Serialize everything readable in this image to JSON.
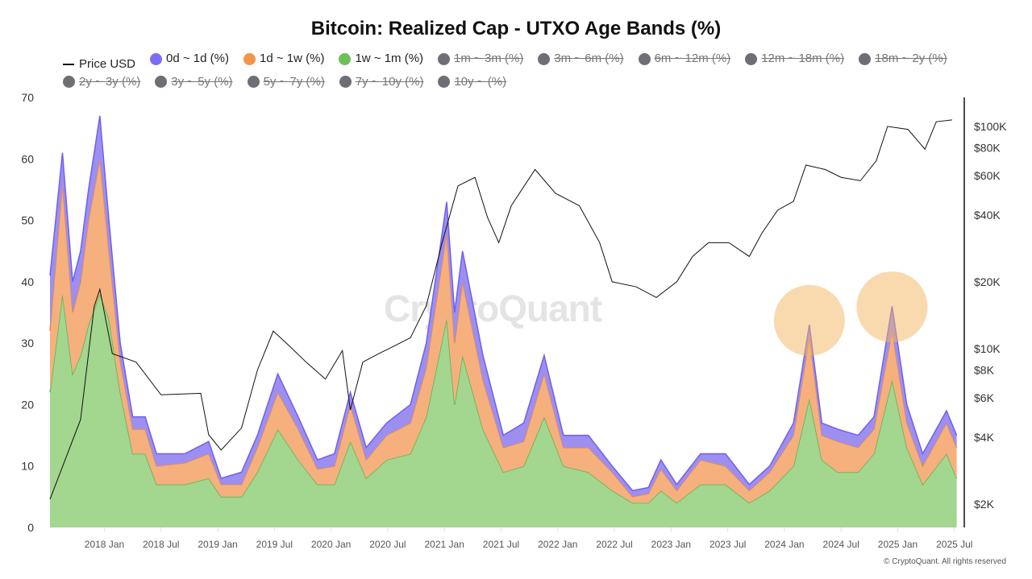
{
  "chart_data": {
    "type": "area",
    "stacked": true,
    "title": "Bitcoin: Realized Cap - UTXO Age Bands (%)",
    "ylabel": "",
    "ylim": [
      0,
      70
    ],
    "yticks": [
      0,
      10,
      20,
      30,
      40,
      50,
      60,
      70
    ],
    "y2_scale": "log",
    "y2lim": [
      1700,
      130000
    ],
    "y2ticks": [
      {
        "v": 2000,
        "l": "$2K"
      },
      {
        "v": 4000,
        "l": "$4K"
      },
      {
        "v": 6000,
        "l": "$6K"
      },
      {
        "v": 8000,
        "l": "$8K"
      },
      {
        "v": 10000,
        "l": "$10K"
      },
      {
        "v": 20000,
        "l": "$20K"
      },
      {
        "v": 40000,
        "l": "$40K"
      },
      {
        "v": 60000,
        "l": "$60K"
      },
      {
        "v": 80000,
        "l": "$80K"
      },
      {
        "v": 100000,
        "l": "$100K"
      }
    ],
    "xlim": [
      2017.52,
      2025.53
    ],
    "xticks": [
      {
        "v": 2018.0,
        "l": "2018 Jan"
      },
      {
        "v": 2018.5,
        "l": "2018 Jul"
      },
      {
        "v": 2019.0,
        "l": "2019 Jan"
      },
      {
        "v": 2019.5,
        "l": "2019 Jul"
      },
      {
        "v": 2020.0,
        "l": "2020 Jan"
      },
      {
        "v": 2020.5,
        "l": "2020 Jul"
      },
      {
        "v": 2021.0,
        "l": "2021 Jan"
      },
      {
        "v": 2021.5,
        "l": "2021 Jul"
      },
      {
        "v": 2022.0,
        "l": "2022 Jan"
      },
      {
        "v": 2022.5,
        "l": "2022 Jul"
      },
      {
        "v": 2023.0,
        "l": "2023 Jan"
      },
      {
        "v": 2023.5,
        "l": "2023 Jul"
      },
      {
        "v": 2024.0,
        "l": "2024 Jan"
      },
      {
        "v": 2024.5,
        "l": "2024 Jul"
      },
      {
        "v": 2025.0,
        "l": "2025 Jan"
      },
      {
        "v": 2025.5,
        "l": "2025 Jul"
      }
    ],
    "legend": [
      {
        "label": "Price USD",
        "type": "line",
        "active": true,
        "color": "#111111"
      },
      {
        "label": "0d ~ 1d (%)",
        "active": true,
        "color": "#7b6cf6"
      },
      {
        "label": "1d ~ 1w (%)",
        "active": true,
        "color": "#f2954b"
      },
      {
        "label": "1w ~ 1m (%)",
        "active": true,
        "color": "#6cc05a"
      },
      {
        "label": "1m ~ 3m (%)",
        "active": false,
        "color": "#6e6e75"
      },
      {
        "label": "3m ~ 6m (%)",
        "active": false,
        "color": "#6e6e75"
      },
      {
        "label": "6m ~ 12m (%)",
        "active": false,
        "color": "#6e6e75"
      },
      {
        "label": "12m ~ 18m (%)",
        "active": false,
        "color": "#6e6e75"
      },
      {
        "label": "18m ~ 2y (%)",
        "active": false,
        "color": "#6e6e75"
      },
      {
        "label": "2y ~ 3y (%)",
        "active": false,
        "color": "#6e6e75"
      },
      {
        "label": "3y ~ 5y (%)",
        "active": false,
        "color": "#6e6e75"
      },
      {
        "label": "5y ~ 7y (%)",
        "active": false,
        "color": "#6e6e75"
      },
      {
        "label": "7y ~ 10y (%)",
        "active": false,
        "color": "#6e6e75"
      },
      {
        "label": "10y ~ (%)",
        "active": false,
        "color": "#6e6e75"
      }
    ],
    "x": [
      2017.52,
      2017.63,
      2017.72,
      2017.79,
      2017.86,
      2017.96,
      2018.04,
      2018.14,
      2018.25,
      2018.36,
      2018.46,
      2018.71,
      2018.92,
      2019.03,
      2019.21,
      2019.35,
      2019.53,
      2019.71,
      2019.88,
      2020.03,
      2020.17,
      2020.31,
      2020.49,
      2020.7,
      2020.84,
      2021.02,
      2021.09,
      2021.16,
      2021.34,
      2021.52,
      2021.7,
      2021.88,
      2022.05,
      2022.27,
      2022.48,
      2022.66,
      2022.8,
      2022.91,
      2023.05,
      2023.26,
      2023.48,
      2023.69,
      2023.87,
      2024.08,
      2024.22,
      2024.33,
      2024.47,
      2024.65,
      2024.79,
      2024.95,
      2025.08,
      2025.22,
      2025.43,
      2025.52
    ],
    "series": [
      {
        "name": "1w ~ 1m (%)",
        "fill": "#a3d68f",
        "stroke": "#5db34a",
        "values": [
          22,
          38,
          25,
          28,
          33,
          38,
          34,
          22,
          12,
          12,
          7,
          7,
          8,
          5,
          5,
          9,
          16,
          11,
          7,
          7,
          14,
          8,
          11,
          12,
          18,
          34,
          20,
          28,
          16,
          9,
          10,
          18,
          10,
          9,
          6,
          4,
          4,
          6,
          4,
          7,
          7,
          4,
          6,
          10,
          21,
          11,
          9,
          9,
          12,
          24,
          13,
          7,
          12,
          8
        ]
      },
      {
        "name": "1d ~ 1w (%)",
        "fill": "#f5b07e",
        "stroke": "#ef8a3c",
        "values": [
          10,
          18,
          10,
          12,
          17,
          22,
          11,
          5,
          4,
          4,
          3,
          3.5,
          4,
          2,
          2,
          4,
          6,
          5,
          2.5,
          3,
          6,
          3,
          4,
          5,
          8,
          14,
          10,
          12,
          8,
          4,
          4,
          7,
          3,
          4,
          3,
          1,
          1.5,
          3.5,
          2,
          4,
          3,
          2,
          3,
          5,
          10,
          4,
          5,
          4,
          4,
          8,
          4,
          3,
          5,
          5
        ]
      },
      {
        "name": "0d ~ 1d (%)",
        "fill": "#9c8ff0",
        "stroke": "#6f5ff2",
        "values": [
          9,
          5,
          5,
          5,
          5,
          7,
          5,
          3,
          2,
          2,
          2,
          1.5,
          2,
          1,
          2,
          2,
          3,
          2,
          1.5,
          2,
          2,
          2,
          2,
          3,
          4,
          5,
          5,
          5,
          4,
          2,
          3,
          3,
          2,
          2,
          1,
          1,
          1,
          1.5,
          1,
          1,
          2,
          1,
          1,
          2,
          2,
          2,
          2,
          2,
          2,
          4,
          3,
          2,
          2,
          2
        ]
      }
    ],
    "price": {
      "name": "Price USD",
      "x": [
        2017.52,
        2017.79,
        2017.91,
        2017.96,
        2018.07,
        2018.28,
        2018.5,
        2018.85,
        2018.92,
        2019.03,
        2019.21,
        2019.35,
        2019.49,
        2019.64,
        2019.78,
        2019.95,
        2020.1,
        2020.17,
        2020.28,
        2020.42,
        2020.56,
        2020.7,
        2020.84,
        2020.98,
        2021.12,
        2021.27,
        2021.38,
        2021.48,
        2021.59,
        2021.8,
        2021.98,
        2022.19,
        2022.37,
        2022.48,
        2022.69,
        2022.87,
        2023.05,
        2023.19,
        2023.33,
        2023.51,
        2023.69,
        2023.8,
        2023.94,
        2024.08,
        2024.19,
        2024.36,
        2024.5,
        2024.67,
        2024.81,
        2024.91,
        2025.09,
        2025.24,
        2025.34,
        2025.48
      ],
      "values": [
        2100,
        4800,
        15500,
        18500,
        9500,
        8700,
        6200,
        6300,
        4100,
        3500,
        4400,
        8000,
        12000,
        10200,
        8700,
        7300,
        9800,
        5300,
        8700,
        9500,
        10300,
        11200,
        15600,
        30000,
        54000,
        59000,
        39000,
        30000,
        44000,
        64000,
        50000,
        44000,
        30000,
        20000,
        19000,
        17000,
        20000,
        26000,
        30000,
        30000,
        26000,
        33000,
        42000,
        46000,
        67000,
        64000,
        59000,
        57000,
        70000,
        100000,
        97000,
        79000,
        105000,
        107000
      ]
    },
    "highlights": [
      {
        "x": 2024.22,
        "y": 33.7
      },
      {
        "x": 2024.95,
        "y": 35.9
      }
    ]
  },
  "watermark": "CryptoQuant",
  "copyright": "© CryptoQuant. All rights reserved"
}
